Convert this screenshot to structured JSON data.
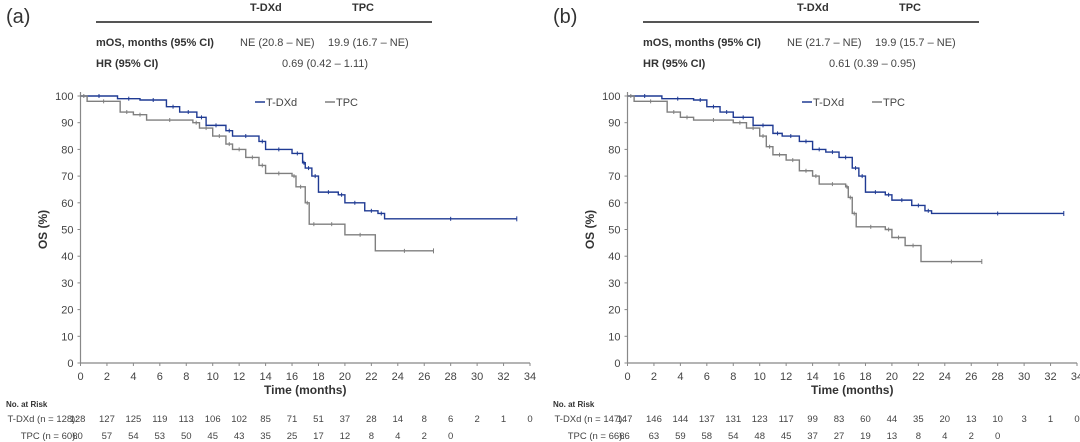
{
  "chart_data": [
    {
      "type": "line",
      "panel_label": "(a)",
      "title": "",
      "xlabel": "Time (months)",
      "ylabel": "OS (%)",
      "xlim": [
        0,
        34
      ],
      "ylim": [
        0,
        100
      ],
      "xticks": [
        0,
        2,
        4,
        6,
        8,
        10,
        12,
        14,
        16,
        18,
        20,
        22,
        24,
        26,
        28,
        30,
        32,
        34
      ],
      "yticks": [
        0,
        10,
        20,
        30,
        40,
        50,
        60,
        70,
        80,
        90,
        100
      ],
      "legend": {
        "placement": "top-center",
        "entries": [
          "T-DXd",
          "TPC"
        ]
      },
      "summary_table": {
        "headers": [
          "T-DXd",
          "TPC"
        ],
        "rows": [
          {
            "label": "mOS, months (95% CI)",
            "values": [
              "NE (20.8 – NE)",
              "19.9 (16.7 – NE)"
            ]
          },
          {
            "label": "HR (95% CI)",
            "values": [
              "0.69 (0.42 – 1.11)"
            ]
          }
        ]
      },
      "series": [
        {
          "name": "T-DXd",
          "color": "#1f3a93",
          "x": [
            0,
            2.8,
            4.5,
            6.5,
            7.5,
            8.8,
            9.5,
            11,
            11.5,
            13.5,
            14,
            16,
            16.8,
            17,
            17.5,
            18,
            19.5,
            20,
            21.5,
            22.5,
            23,
            33
          ],
          "y": [
            100,
            99,
            98.5,
            96,
            94,
            92,
            89,
            87,
            85,
            83,
            80,
            78.5,
            75,
            73,
            70,
            64,
            63,
            60,
            57,
            56,
            54,
            54
          ]
        },
        {
          "name": "TPC",
          "color": "#7f7f7f",
          "x": [
            0,
            0.5,
            3,
            4,
            5,
            8.5,
            9,
            10,
            11,
            11.5,
            12.5,
            13.5,
            14,
            16,
            16.3,
            17,
            17.3,
            18,
            20,
            22.3,
            26.7
          ],
          "y": [
            100,
            98,
            94,
            93,
            91,
            90,
            88,
            85,
            82,
            80,
            77,
            74,
            71,
            70,
            66,
            60,
            52,
            52,
            48,
            42,
            42
          ]
        }
      ],
      "risk_table": {
        "title": "No. at Risk",
        "rows": [
          {
            "label": "T-DXd (n = 128):",
            "values": [
              128,
              127,
              125,
              119,
              113,
              106,
              102,
              85,
              71,
              51,
              37,
              28,
              14,
              8,
              6,
              2,
              1,
              0
            ]
          },
          {
            "label": "TPC (n = 60):",
            "values": [
              60,
              57,
              54,
              53,
              50,
              45,
              43,
              35,
              25,
              17,
              12,
              8,
              4,
              2,
              0
            ]
          }
        ]
      }
    },
    {
      "type": "line",
      "panel_label": "(b)",
      "title": "",
      "xlabel": "Time (months)",
      "ylabel": "OS (%)",
      "xlim": [
        0,
        34
      ],
      "ylim": [
        0,
        100
      ],
      "xticks": [
        0,
        2,
        4,
        6,
        8,
        10,
        12,
        14,
        16,
        18,
        20,
        22,
        24,
        26,
        28,
        30,
        32,
        34
      ],
      "yticks": [
        0,
        10,
        20,
        30,
        40,
        50,
        60,
        70,
        80,
        90,
        100
      ],
      "legend": {
        "placement": "top-center",
        "entries": [
          "T-DXd",
          "TPC"
        ]
      },
      "summary_table": {
        "headers": [
          "T-DXd",
          "TPC"
        ],
        "rows": [
          {
            "label": "mOS, months (95% CI)",
            "values": [
              "NE (21.7 – NE)",
              "19.9 (15.7 – NE)"
            ]
          },
          {
            "label": "HR (95% CI)",
            "values": [
              "0.61 (0.39 – 0.95)"
            ]
          }
        ]
      },
      "series": [
        {
          "name": "T-DXd",
          "color": "#1f3a93",
          "x": [
            0,
            2.6,
            5,
            6,
            7,
            8,
            9.5,
            11,
            11.7,
            13,
            14,
            15,
            16,
            17,
            17.5,
            18,
            19.5,
            20,
            21.5,
            22.5,
            23,
            33
          ],
          "y": [
            100,
            99,
            98.5,
            96,
            94,
            92,
            89,
            86,
            85,
            83,
            80,
            79,
            77,
            73,
            70,
            64,
            63,
            61,
            59,
            57,
            56,
            56
          ]
        },
        {
          "name": "TPC",
          "color": "#7f7f7f",
          "x": [
            0,
            0.5,
            3,
            4,
            5,
            8,
            9,
            10,
            10.5,
            11,
            12,
            13,
            14,
            14.5,
            16.5,
            16.7,
            17,
            17.3,
            19.5,
            20,
            21,
            22.2,
            26.8
          ],
          "y": [
            100,
            98,
            94,
            92,
            91,
            90,
            88,
            85,
            81,
            78,
            76,
            72,
            70,
            67,
            66,
            62,
            56,
            51,
            50,
            47,
            44,
            38,
            38
          ]
        }
      ],
      "risk_table": {
        "title": "No. at Risk",
        "rows": [
          {
            "label": "T-DXd (n = 147):",
            "values": [
              147,
              146,
              144,
              137,
              131,
              123,
              117,
              99,
              83,
              60,
              44,
              35,
              20,
              13,
              10,
              3,
              1,
              0
            ]
          },
          {
            "label": "TPC (n = 66):",
            "values": [
              66,
              63,
              59,
              58,
              54,
              48,
              45,
              37,
              27,
              19,
              13,
              8,
              4,
              2,
              0
            ]
          }
        ]
      }
    }
  ]
}
